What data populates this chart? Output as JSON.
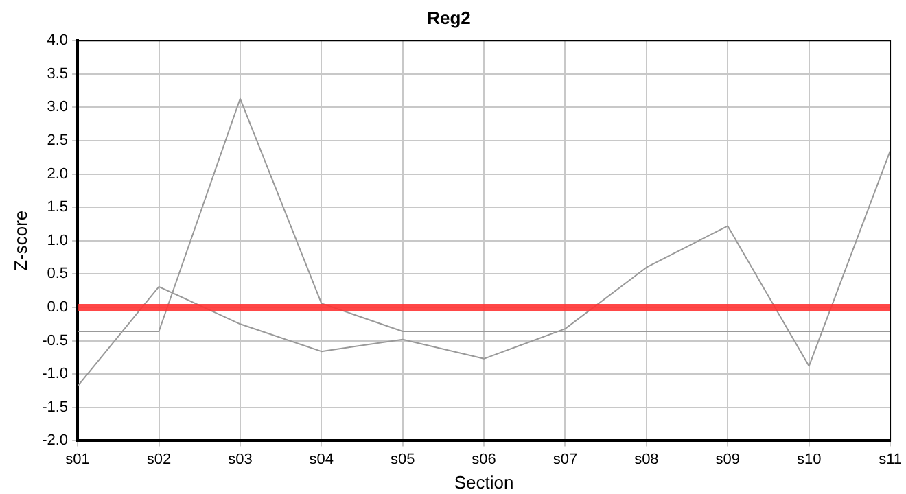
{
  "chart_data": {
    "type": "line",
    "title": "Reg2",
    "xlabel": "Section",
    "ylabel": "Z-score",
    "categories": [
      "s01",
      "s02",
      "s03",
      "s04",
      "s05",
      "s06",
      "s07",
      "s08",
      "s09",
      "s10",
      "s11"
    ],
    "series": [
      {
        "color": "#999999",
        "values": [
          -0.36,
          -0.36,
          3.13,
          0.06,
          -0.36,
          -0.36,
          -0.36,
          -0.36,
          -0.36,
          -0.36,
          -0.36
        ]
      },
      {
        "color": "#999999",
        "values": [
          -1.18,
          0.31,
          -0.25,
          -0.66,
          -0.48,
          -0.77,
          -0.32,
          0.6,
          1.22,
          -0.88,
          2.35
        ]
      }
    ],
    "ylim": [
      -2,
      4
    ],
    "yticks": [
      {
        "value": -2,
        "label": "-2.0"
      },
      -1.5,
      {
        "value": -1,
        "label": "-1.0"
      },
      -0.5,
      {
        "value": 0,
        "label": "0.0"
      },
      0.5,
      {
        "value": 1,
        "label": "1.0"
      },
      1.5,
      {
        "value": 2,
        "label": "2.0"
      },
      2.5,
      {
        "value": 3,
        "label": "3.0"
      },
      3.5,
      {
        "value": 4,
        "label": "4.0"
      }
    ],
    "ref_lines": [
      {
        "axis": "y",
        "value": 0,
        "color": "#ff3333"
      }
    ],
    "grid": true,
    "legend": false,
    "marker": "none",
    "line_style": "solid"
  }
}
